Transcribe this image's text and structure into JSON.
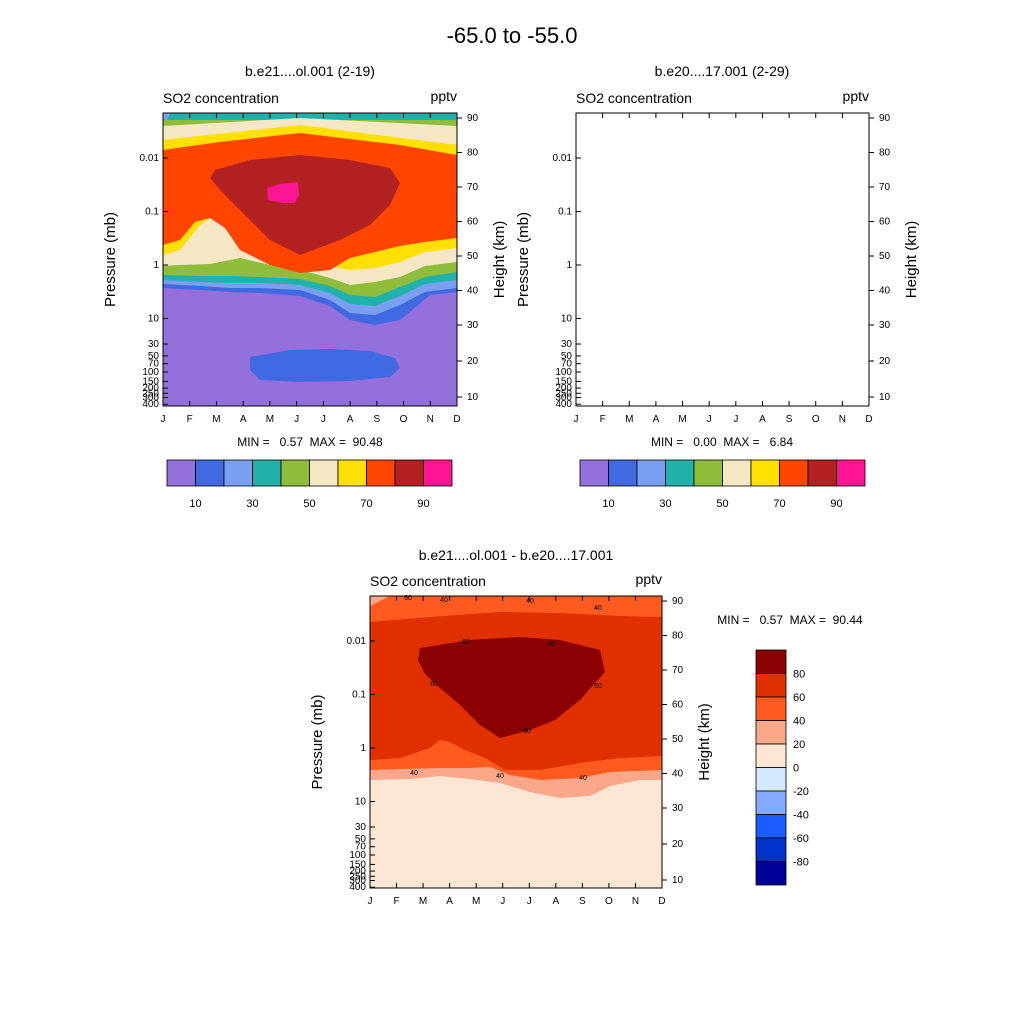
{
  "title": "-65.0 to -55.0",
  "months": [
    "J",
    "F",
    "M",
    "A",
    "M",
    "J",
    "J",
    "A",
    "S",
    "O",
    "N",
    "D"
  ],
  "pressure_ticks": [
    "0.01",
    "0.1",
    "1",
    "10",
    "30",
    "50",
    "70",
    "100",
    "150",
    "200",
    "250",
    "300",
    "400"
  ],
  "height_ticks": [
    "90",
    "80",
    "70",
    "60",
    "50",
    "40",
    "30",
    "20",
    "10"
  ],
  "pressure_label": "Pressure (mb)",
  "height_label": "Height (km)",
  "chart_data": [
    {
      "type": "heatmap",
      "title": "b.e21....ol.001 (2-19)",
      "left_label": "SO2 concentration",
      "right_label": "pptv",
      "minmax": "MIN =   0.57  MAX =  90.48",
      "x": [
        "J",
        "F",
        "M",
        "A",
        "M",
        "J",
        "J",
        "A",
        "S",
        "O",
        "N",
        "D"
      ],
      "colorbar": {
        "orientation": "horizontal",
        "levels": [
          10,
          20,
          30,
          40,
          50,
          60,
          70,
          80,
          90
        ],
        "tick_labels": [
          "10",
          "30",
          "50",
          "70",
          "90"
        ],
        "colors": [
          "#9370db",
          "#4169e1",
          "#7b9ff0",
          "#20b2aa",
          "#8fbc3a",
          "#f5e6c4",
          "#ffe000",
          "#ff4500",
          "#b22222",
          "#ff1493"
        ]
      }
    },
    {
      "type": "heatmap",
      "title": "b.e20....17.001 (2-29)",
      "left_label": "SO2 concentration",
      "right_label": "pptv",
      "minmax": "MIN =   0.00  MAX =   6.84",
      "x": [
        "J",
        "F",
        "M",
        "A",
        "M",
        "J",
        "J",
        "A",
        "S",
        "O",
        "N",
        "D"
      ],
      "colorbar": {
        "orientation": "horizontal",
        "levels": [
          10,
          20,
          30,
          40,
          50,
          60,
          70,
          80,
          90
        ],
        "tick_labels": [
          "10",
          "30",
          "50",
          "70",
          "90"
        ],
        "colors": [
          "#9370db",
          "#4169e1",
          "#7b9ff0",
          "#20b2aa",
          "#8fbc3a",
          "#f5e6c4",
          "#ffe000",
          "#ff4500",
          "#b22222",
          "#ff1493"
        ]
      }
    },
    {
      "type": "heatmap",
      "title": "b.e21....ol.001 - b.e20....17.001",
      "left_label": "SO2 concentration",
      "right_label": "pptv",
      "minmax": "MIN =   0.57  MAX =  90.44",
      "x": [
        "J",
        "F",
        "M",
        "A",
        "M",
        "J",
        "J",
        "A",
        "S",
        "O",
        "N",
        "D"
      ],
      "contour_labels": [
        "40",
        "40",
        "40",
        "40",
        "40",
        "40",
        "60",
        "60",
        "60",
        "60",
        "60",
        "60"
      ],
      "colorbar": {
        "orientation": "vertical",
        "levels": [
          -80,
          -60,
          -40,
          -20,
          0,
          20,
          40,
          60,
          80
        ],
        "tick_labels": [
          "80",
          "60",
          "40",
          "20",
          "0",
          "-20",
          "-40",
          "-60",
          "-80"
        ],
        "colors": [
          "#000099",
          "#0033cc",
          "#1a5cff",
          "#85aaff",
          "#d6eaff",
          "#fde6d4",
          "#fba88a",
          "#ff5a1f",
          "#e03000",
          "#8b0000"
        ]
      }
    }
  ]
}
